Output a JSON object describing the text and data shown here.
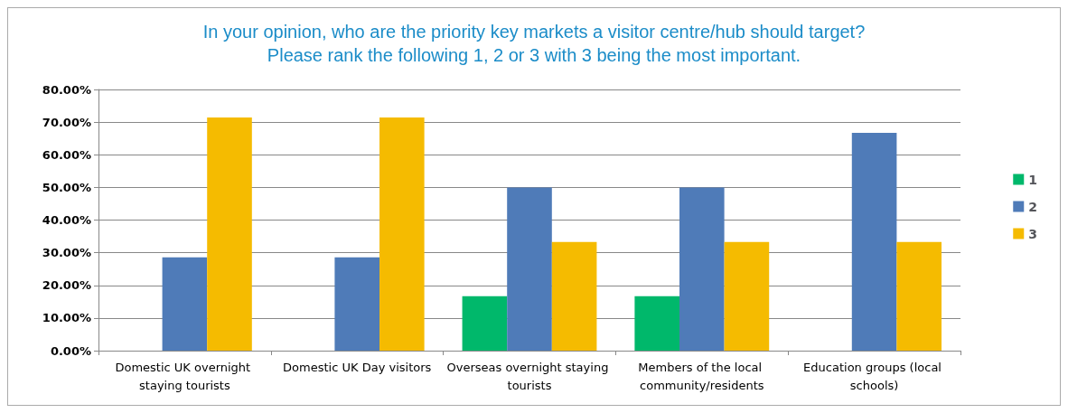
{
  "chart_data": {
    "type": "bar",
    "title": "In your opinion, who are the priority key markets a visitor centre/hub should target?\nPlease rank the following 1, 2 or 3 with 3 being the most important.",
    "categories": [
      "Domestic UK overnight staying tourists",
      "Domestic UK Day visitors",
      "Overseas overnight staying tourists",
      "Members of the local community/residents",
      "Education groups (local schools)"
    ],
    "series": [
      {
        "name": "1",
        "color": "#00b86b",
        "values": [
          0,
          0,
          16.7,
          16.7,
          0
        ]
      },
      {
        "name": "2",
        "color": "#4f7bb8",
        "values": [
          28.6,
          28.6,
          50,
          50,
          66.7
        ]
      },
      {
        "name": "3",
        "color": "#f5bb00",
        "values": [
          71.4,
          71.4,
          33.3,
          33.3,
          33.3
        ]
      }
    ],
    "ylim": [
      0,
      80
    ],
    "yticks": [
      {
        "value": 0,
        "label": "0.00%"
      },
      {
        "value": 10,
        "label": "10.00%"
      },
      {
        "value": 20,
        "label": "20.00%"
      },
      {
        "value": 30,
        "label": "30.00%"
      },
      {
        "value": 40,
        "label": "40.00%"
      },
      {
        "value": 50,
        "label": "50.00%"
      },
      {
        "value": 60,
        "label": "60.00%"
      },
      {
        "value": 70,
        "label": "70.00%"
      },
      {
        "value": 80,
        "label": "80.00%"
      }
    ],
    "grid": "y",
    "legend": "right"
  }
}
